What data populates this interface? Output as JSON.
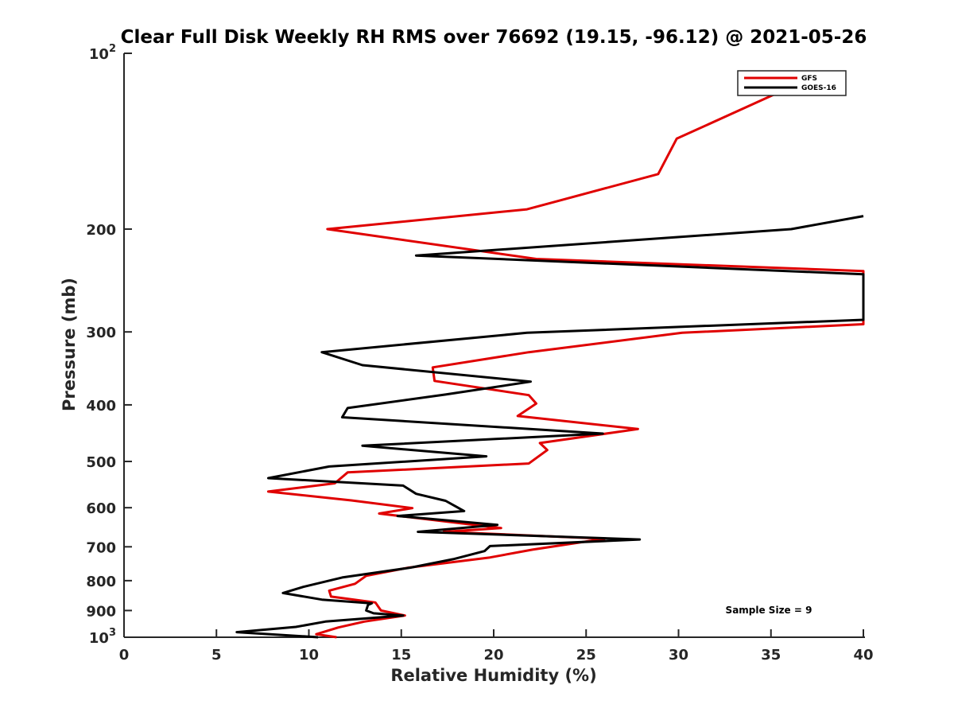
{
  "chart_data": {
    "type": "line",
    "title": "Clear Full Disk Weekly RH RMS over 76692 (19.15, -96.12) @ 2021-05-26",
    "xlabel": "Relative Humidity (%)",
    "ylabel": "Pressure (mb)",
    "xlim": [
      0,
      40
    ],
    "ylim": [
      100,
      1000
    ],
    "yscale": "log",
    "yreversed": true,
    "xticks": [
      0,
      5,
      10,
      15,
      20,
      25,
      30,
      35,
      40
    ],
    "xtick_labels": [
      "0",
      "5",
      "10",
      "15",
      "20",
      "25",
      "30",
      "35",
      "40"
    ],
    "yticks": [
      {
        "value": 100,
        "base": "10",
        "exp": "2"
      },
      {
        "value": 200,
        "label": "200"
      },
      {
        "value": 300,
        "label": "300"
      },
      {
        "value": 400,
        "label": "400"
      },
      {
        "value": 500,
        "label": "500"
      },
      {
        "value": 600,
        "label": "600"
      },
      {
        "value": 700,
        "label": "700"
      },
      {
        "value": 800,
        "label": "800"
      },
      {
        "value": 900,
        "label": "900"
      },
      {
        "value": 1000,
        "base": "10",
        "exp": "3"
      }
    ],
    "legend_position": "top-right",
    "series": [
      {
        "name": "GFS",
        "color": "#e00000",
        "points": [
          [
            37.2,
            110
          ],
          [
            29.9,
            140
          ],
          [
            28.9,
            161
          ],
          [
            21.8,
            185
          ],
          [
            11.0,
            200
          ],
          [
            22.3,
            225
          ],
          [
            40,
            236
          ],
          [
            40,
            291
          ],
          [
            30.2,
            301
          ],
          [
            21.9,
            325
          ],
          [
            16.7,
            345
          ],
          [
            16.8,
            364
          ],
          [
            21.9,
            385
          ],
          [
            22.3,
            398
          ],
          [
            21.3,
            418
          ],
          [
            27.8,
            440
          ],
          [
            22.5,
            465
          ],
          [
            22.9,
            478
          ],
          [
            21.9,
            504
          ],
          [
            12.1,
            522
          ],
          [
            11.4,
            545
          ],
          [
            7.8,
            563
          ],
          [
            12.3,
            583
          ],
          [
            15.6,
            601
          ],
          [
            13.8,
            614
          ],
          [
            20.4,
            650
          ],
          [
            17.3,
            660
          ],
          [
            26.0,
            678
          ],
          [
            22.1,
            708
          ],
          [
            19.8,
            730
          ],
          [
            15.4,
            760
          ],
          [
            13.1,
            785
          ],
          [
            12.5,
            810
          ],
          [
            11.1,
            832
          ],
          [
            11.2,
            852
          ],
          [
            13.6,
            872
          ],
          [
            13.9,
            900
          ],
          [
            15.2,
            918
          ],
          [
            13.0,
            940
          ],
          [
            11.6,
            962
          ],
          [
            10.4,
            988
          ],
          [
            11.5,
            1000
          ]
        ]
      },
      {
        "name": "GOES-16",
        "color": "#000000",
        "points": [
          [
            40,
            190
          ],
          [
            36.1,
            200
          ],
          [
            15.8,
            222
          ],
          [
            40,
            239
          ],
          [
            40,
            286
          ],
          [
            21.8,
            301
          ],
          [
            10.7,
            325
          ],
          [
            12.9,
            342
          ],
          [
            22.0,
            365
          ],
          [
            17.4,
            384
          ],
          [
            12.1,
            405
          ],
          [
            11.8,
            420
          ],
          [
            25.9,
            448
          ],
          [
            12.9,
            470
          ],
          [
            19.6,
            490
          ],
          [
            11.1,
            510
          ],
          [
            7.8,
            534
          ],
          [
            15.1,
            550
          ],
          [
            15.8,
            568
          ],
          [
            17.4,
            584
          ],
          [
            18.4,
            608
          ],
          [
            14.8,
            620
          ],
          [
            20.2,
            642
          ],
          [
            15.9,
            660
          ],
          [
            27.9,
            680
          ],
          [
            19.8,
            698
          ],
          [
            19.5,
            712
          ],
          [
            17.8,
            735
          ],
          [
            15.5,
            760
          ],
          [
            11.8,
            790
          ],
          [
            9.7,
            820
          ],
          [
            8.6,
            840
          ],
          [
            10.7,
            862
          ],
          [
            13.4,
            875
          ],
          [
            13.2,
            880
          ],
          [
            13.1,
            900
          ],
          [
            13.5,
            910
          ],
          [
            15.1,
            918
          ],
          [
            10.9,
            940
          ],
          [
            9.3,
            960
          ],
          [
            6.1,
            980
          ],
          [
            10.5,
            1000
          ]
        ]
      }
    ],
    "annotation": "Sample Size = 9"
  }
}
